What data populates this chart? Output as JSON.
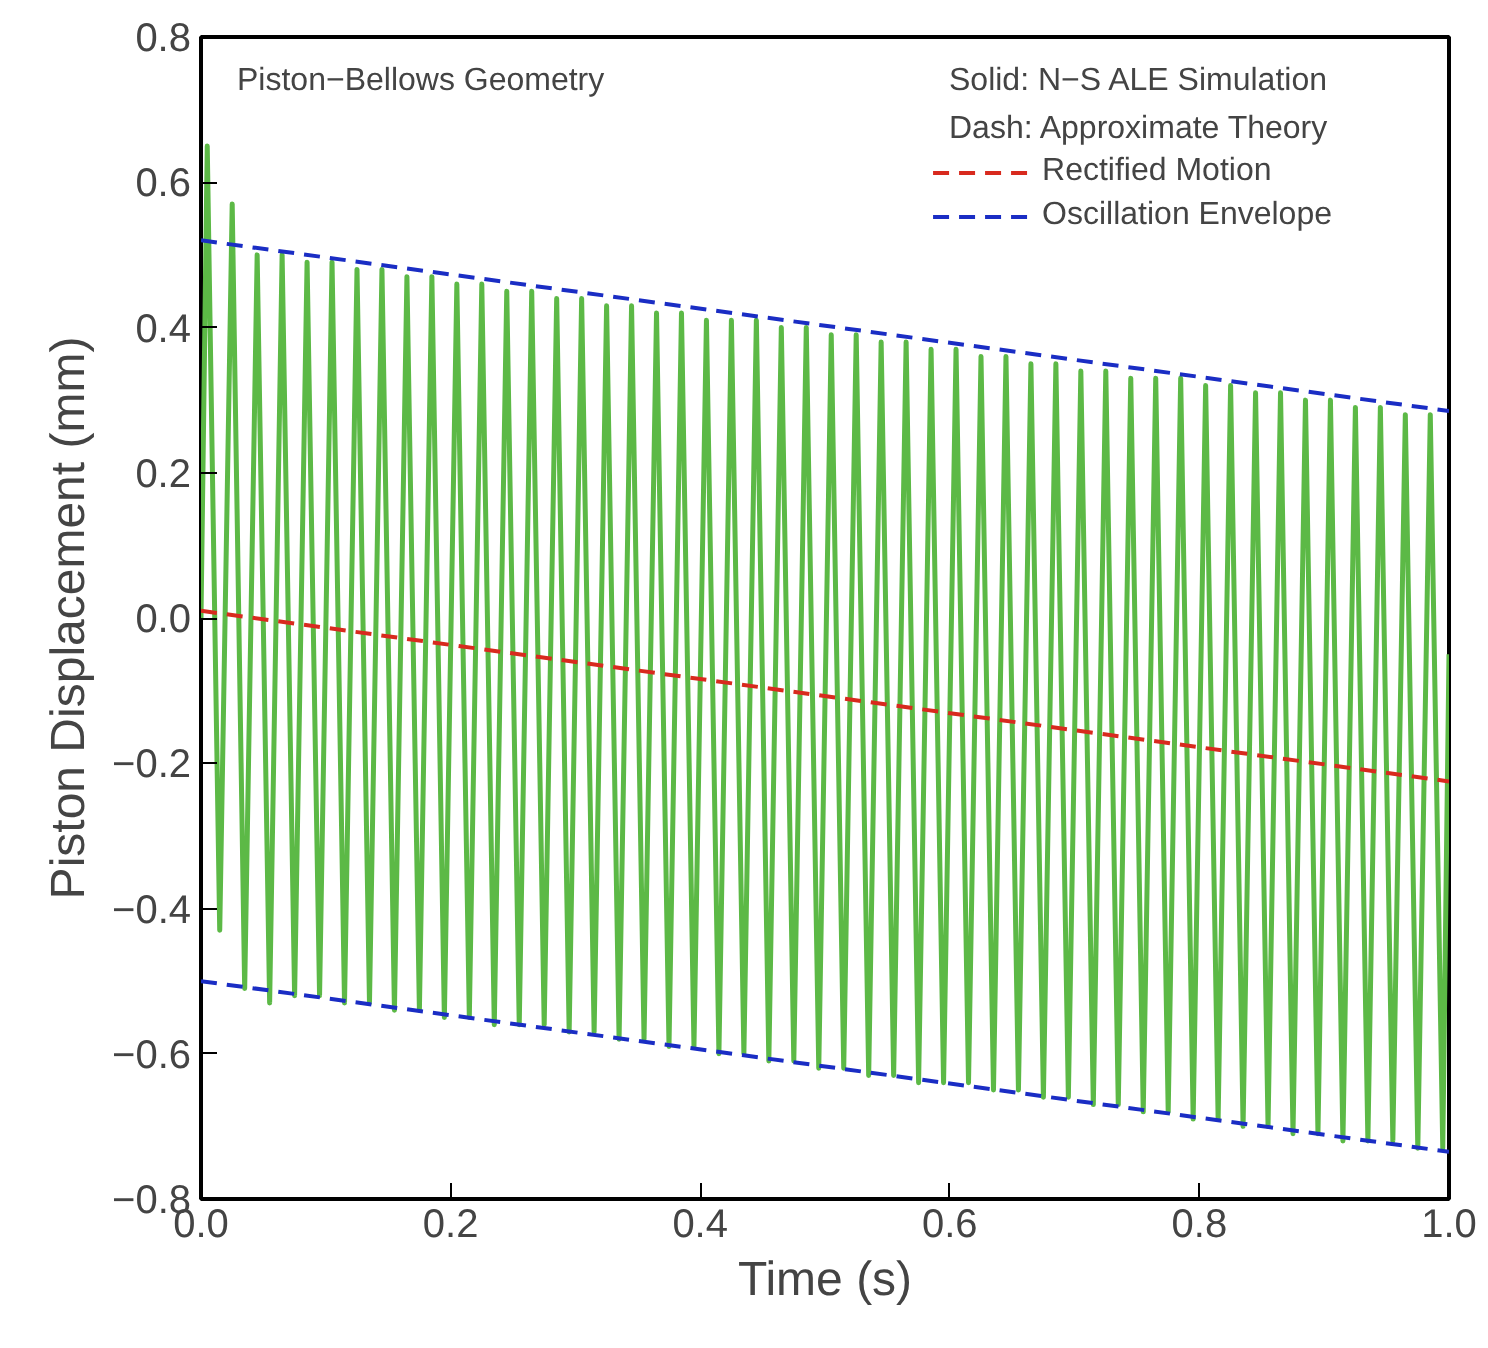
{
  "chart_data": {
    "type": "line",
    "xlabel": "Time (s)",
    "ylabel": "Piston Displacement (mm)",
    "annotations": [
      "Piston−Bellows Geometry",
      "Solid:  N−S ALE Simulation",
      "Dash:  Approximate Theory"
    ],
    "xlim": [
      0,
      1
    ],
    "ylim": [
      -0.8,
      0.8
    ],
    "xticks": [
      {
        "value": 0,
        "label": "0.0"
      },
      {
        "value": 0.2,
        "label": "0.2"
      },
      {
        "value": 0.4,
        "label": "0.4"
      },
      {
        "value": 0.6,
        "label": "0.6"
      },
      {
        "value": 0.8,
        "label": "0.8"
      },
      {
        "value": 1,
        "label": "1.0"
      }
    ],
    "yticks": [
      {
        "value": -0.8,
        "label": "−0.8"
      },
      {
        "value": -0.6,
        "label": "−0.6"
      },
      {
        "value": -0.4,
        "label": "−0.4"
      },
      {
        "value": -0.2,
        "label": "−0.2"
      },
      {
        "value": 0,
        "label": "0.0"
      },
      {
        "value": 0.2,
        "label": "0.2"
      },
      {
        "value": 0.4,
        "label": "0.4"
      },
      {
        "value": 0.6,
        "label": "0.6"
      },
      {
        "value": 0.8,
        "label": "0.8"
      }
    ],
    "grid": false,
    "legend": "top right",
    "series": [
      {
        "color": "#5cb946",
        "line_style": "solid",
        "x": [
          0,
          0.005,
          0.015,
          0.025,
          0.035,
          0.045,
          0.055,
          0.065,
          0.075,
          0.085,
          0.095,
          0.105,
          0.115,
          0.125,
          0.135,
          0.145,
          0.155,
          0.165,
          0.175,
          0.185,
          0.195,
          0.205,
          0.215,
          0.225,
          0.235,
          0.245,
          0.255,
          0.265,
          0.275,
          0.285,
          0.295,
          0.305,
          0.315,
          0.325,
          0.335,
          0.345,
          0.355,
          0.365,
          0.375,
          0.385,
          0.395,
          0.405,
          0.415,
          0.425,
          0.435,
          0.445,
          0.455,
          0.465,
          0.475,
          0.485,
          0.495,
          0.505,
          0.515,
          0.525,
          0.535,
          0.545,
          0.555,
          0.565,
          0.575,
          0.585,
          0.595,
          0.605,
          0.615,
          0.625,
          0.635,
          0.645,
          0.655,
          0.665,
          0.675,
          0.685,
          0.695,
          0.705,
          0.715,
          0.725,
          0.735,
          0.745,
          0.755,
          0.765,
          0.775,
          0.785,
          0.795,
          0.805,
          0.815,
          0.825,
          0.835,
          0.845,
          0.855,
          0.865,
          0.875,
          0.885,
          0.895,
          0.905,
          0.915,
          0.925,
          0.935,
          0.945,
          0.955,
          0.965,
          0.975,
          0.985,
          0.995,
          1.0
        ],
        "values": [
          0,
          0.65,
          -0.43,
          0.57,
          -0.51,
          0.5,
          -0.53,
          0.5,
          -0.52,
          0.49,
          -0.52,
          0.49,
          -0.53,
          0.48,
          -0.53,
          0.48,
          -0.54,
          0.47,
          -0.54,
          0.47,
          -0.55,
          0.46,
          -0.55,
          0.46,
          -0.56,
          0.45,
          -0.56,
          0.45,
          -0.56,
          0.44,
          -0.57,
          0.44,
          -0.57,
          0.43,
          -0.58,
          0.43,
          -0.58,
          0.42,
          -0.59,
          0.42,
          -0.59,
          0.41,
          -0.6,
          0.41,
          -0.6,
          0.41,
          -0.61,
          0.4,
          -0.61,
          0.4,
          -0.62,
          0.39,
          -0.62,
          0.39,
          -0.63,
          0.38,
          -0.63,
          0.38,
          -0.64,
          0.37,
          -0.64,
          0.37,
          -0.64,
          0.36,
          -0.65,
          0.36,
          -0.65,
          0.35,
          -0.66,
          0.35,
          -0.66,
          0.34,
          -0.67,
          0.34,
          -0.67,
          0.33,
          -0.68,
          0.33,
          -0.68,
          0.33,
          -0.69,
          0.32,
          -0.69,
          0.32,
          -0.7,
          0.31,
          -0.7,
          0.31,
          -0.71,
          0.3,
          -0.71,
          0.3,
          -0.72,
          0.29,
          -0.72,
          0.29,
          -0.72,
          0.28,
          -0.73,
          0.28,
          -0.73,
          -0.05
        ]
      },
      {
        "name": "Rectified Motion",
        "color": "#d82a1e",
        "line_style": "dashed",
        "x": [
          0,
          1
        ],
        "values": [
          0.01,
          -0.225
        ]
      },
      {
        "name": "Oscillation Envelope",
        "color": "#1a2dc4",
        "line_style": "dashed",
        "x": [
          0,
          1
        ],
        "values": [
          0.52,
          0.285
        ]
      },
      {
        "color": "#1a2dc4",
        "line_style": "dashed",
        "x": [
          0,
          1
        ],
        "values": [
          -0.5,
          -0.735
        ]
      }
    ]
  }
}
